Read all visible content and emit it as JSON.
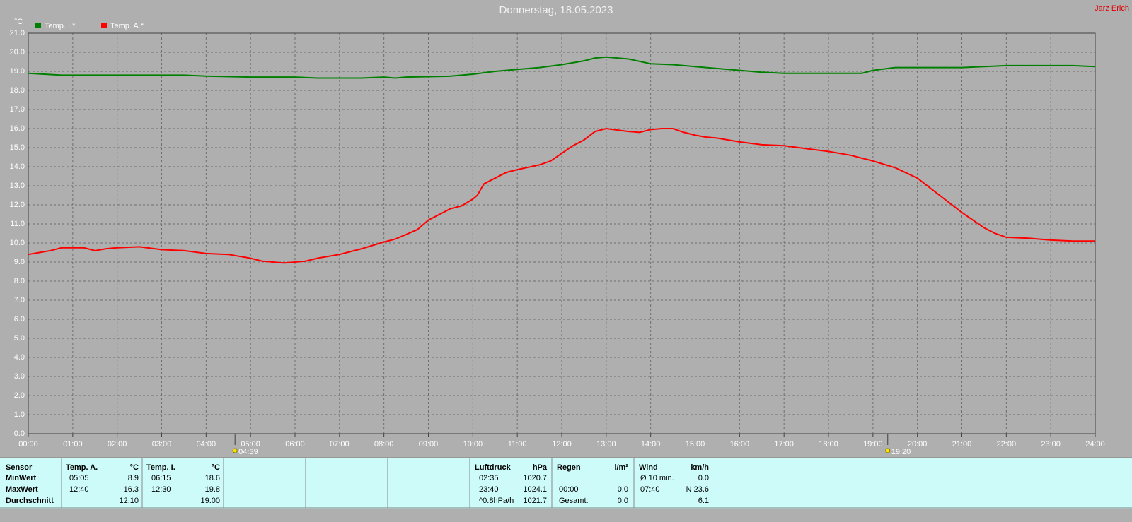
{
  "chart_data": {
    "type": "line",
    "title": "Donnerstag, 18.05.2023",
    "author": "Jarz Erich",
    "y_label": "°C",
    "xlim": [
      0,
      24
    ],
    "ylim": [
      0,
      21
    ],
    "grid": true,
    "xticks": [
      {
        "value": 0,
        "label": "00:00"
      },
      {
        "value": 1,
        "label": "01:00"
      },
      {
        "value": 2,
        "label": "02:00"
      },
      {
        "value": 3,
        "label": "03:00"
      },
      {
        "value": 4,
        "label": "04:00"
      },
      {
        "value": 5,
        "label": "05:00"
      },
      {
        "value": 6,
        "label": "06:00"
      },
      {
        "value": 7,
        "label": "07:00"
      },
      {
        "value": 8,
        "label": "08:00"
      },
      {
        "value": 9,
        "label": "09:00"
      },
      {
        "value": 10,
        "label": "10:00"
      },
      {
        "value": 11,
        "label": "11:00"
      },
      {
        "value": 12,
        "label": "12:00"
      },
      {
        "value": 13,
        "label": "13:00"
      },
      {
        "value": 14,
        "label": "14:00"
      },
      {
        "value": 15,
        "label": "15:00"
      },
      {
        "value": 16,
        "label": "16:00"
      },
      {
        "value": 17,
        "label": "17:00"
      },
      {
        "value": 18,
        "label": "18:00"
      },
      {
        "value": 19,
        "label": "19:00"
      },
      {
        "value": 20,
        "label": "20:00"
      },
      {
        "value": 21,
        "label": "21:00"
      },
      {
        "value": 22,
        "label": "22:00"
      },
      {
        "value": 23,
        "label": "23:00"
      },
      {
        "value": 24,
        "label": "24:00"
      }
    ],
    "yticks": [
      {
        "value": 0,
        "label": "0.0"
      },
      {
        "value": 1,
        "label": "1.0"
      },
      {
        "value": 2,
        "label": "2.0"
      },
      {
        "value": 3,
        "label": "3.0"
      },
      {
        "value": 4,
        "label": "4.0"
      },
      {
        "value": 5,
        "label": "5.0"
      },
      {
        "value": 6,
        "label": "6.0"
      },
      {
        "value": 7,
        "label": "7.0"
      },
      {
        "value": 8,
        "label": "8.0"
      },
      {
        "value": 9,
        "label": "9.0"
      },
      {
        "value": 10,
        "label": "10.0"
      },
      {
        "value": 11,
        "label": "11.0"
      },
      {
        "value": 12,
        "label": "12.0"
      },
      {
        "value": 13,
        "label": "13.0"
      },
      {
        "value": 14,
        "label": "14.0"
      },
      {
        "value": 15,
        "label": "15.0"
      },
      {
        "value": 16,
        "label": "16.0"
      },
      {
        "value": 17,
        "label": "17.0"
      },
      {
        "value": 18,
        "label": "18.0"
      },
      {
        "value": 19,
        "label": "19.0"
      },
      {
        "value": 20,
        "label": "20.0"
      },
      {
        "value": 21,
        "label": "21.0"
      }
    ],
    "annotations": [
      {
        "x": 4.65,
        "label": "04:39"
      },
      {
        "x": 19.333,
        "label": "19:20"
      }
    ],
    "series": [
      {
        "name": "Temp. I.*",
        "color": "#008000",
        "x": [
          0,
          0.75,
          1,
          2,
          3,
          3.5,
          4,
          5,
          6,
          6.5,
          7.5,
          8,
          8.25,
          8.5,
          9.5,
          10,
          10.5,
          11,
          11.5,
          12,
          12.5,
          12.75,
          13,
          13.5,
          14,
          14.5,
          15,
          15.5,
          16,
          16.5,
          17,
          18,
          18.75,
          19,
          19.5,
          20,
          21,
          21.5,
          22,
          23,
          23.5,
          24
        ],
        "values": [
          18.9,
          18.8,
          18.8,
          18.8,
          18.8,
          18.8,
          18.75,
          18.7,
          18.7,
          18.65,
          18.65,
          18.7,
          18.65,
          18.7,
          18.75,
          18.85,
          19.0,
          19.1,
          19.2,
          19.35,
          19.55,
          19.7,
          19.75,
          19.65,
          19.4,
          19.35,
          19.25,
          19.15,
          19.05,
          18.95,
          18.9,
          18.9,
          18.9,
          19.05,
          19.2,
          19.2,
          19.2,
          19.25,
          19.3,
          19.3,
          19.3,
          19.25
        ]
      },
      {
        "name": "Temp. A.*",
        "color": "#ff0000",
        "x": [
          0,
          0.25,
          0.5,
          0.75,
          1,
          1.25,
          1.5,
          1.75,
          2,
          2.5,
          3,
          3.5,
          4,
          4.5,
          5,
          5.25,
          5.5,
          5.75,
          6,
          6.25,
          6.5,
          7,
          7.5,
          8,
          8.25,
          8.5,
          8.75,
          9,
          9.25,
          9.5,
          9.75,
          10,
          10.1,
          10.25,
          10.5,
          10.75,
          11,
          11.5,
          11.75,
          12,
          12.25,
          12.5,
          12.75,
          13,
          13.5,
          13.75,
          14,
          14.25,
          14.5,
          14.75,
          15,
          15.25,
          15.5,
          16,
          16.5,
          17,
          17.5,
          18,
          18.5,
          19,
          19.5,
          20,
          20.5,
          21,
          21.5,
          21.75,
          22,
          22.5,
          23,
          23.5,
          24
        ],
        "values": [
          9.4,
          9.5,
          9.6,
          9.75,
          9.75,
          9.75,
          9.6,
          9.7,
          9.75,
          9.8,
          9.65,
          9.6,
          9.45,
          9.4,
          9.2,
          9.05,
          9.0,
          8.95,
          9.0,
          9.05,
          9.2,
          9.4,
          9.7,
          10.05,
          10.2,
          10.45,
          10.7,
          11.2,
          11.5,
          11.8,
          11.95,
          12.3,
          12.5,
          13.1,
          13.4,
          13.7,
          13.85,
          14.1,
          14.3,
          14.7,
          15.1,
          15.4,
          15.85,
          16.0,
          15.85,
          15.8,
          15.95,
          16.0,
          16.0,
          15.8,
          15.65,
          15.55,
          15.5,
          15.3,
          15.15,
          15.1,
          14.95,
          14.8,
          14.6,
          14.3,
          13.95,
          13.4,
          12.5,
          11.6,
          10.8,
          10.5,
          10.3,
          10.25,
          10.15,
          10.1,
          10.1
        ]
      }
    ]
  },
  "sensor_table": {
    "header": [
      "Sensor",
      "Temp. A.",
      "°C",
      "Temp. I.",
      "°C"
    ],
    "rows": [
      [
        "MinWert",
        "05:05",
        "8.9",
        "06:15",
        "18.6"
      ],
      [
        "MaxWert",
        "12:40",
        "16.3",
        "12:30",
        "19.8"
      ],
      [
        "Durchschnitt",
        null,
        "12.10",
        null,
        "19.00"
      ]
    ]
  },
  "weather_table": {
    "header": [
      "Luftdruck",
      "hPa",
      "Regen",
      "l/m²",
      "Wind",
      "km/h"
    ],
    "rows": [
      [
        "02:35",
        "1020.7",
        null,
        null,
        "Ø 10 min.",
        "0.0"
      ],
      [
        "23:40",
        "1024.1",
        "00:00",
        "0.0",
        "07:40",
        "N 23.6"
      ],
      [
        "^0.8hPa/h",
        "1021.7",
        "Gesamt:",
        "0.0",
        null,
        "6.1"
      ]
    ]
  }
}
